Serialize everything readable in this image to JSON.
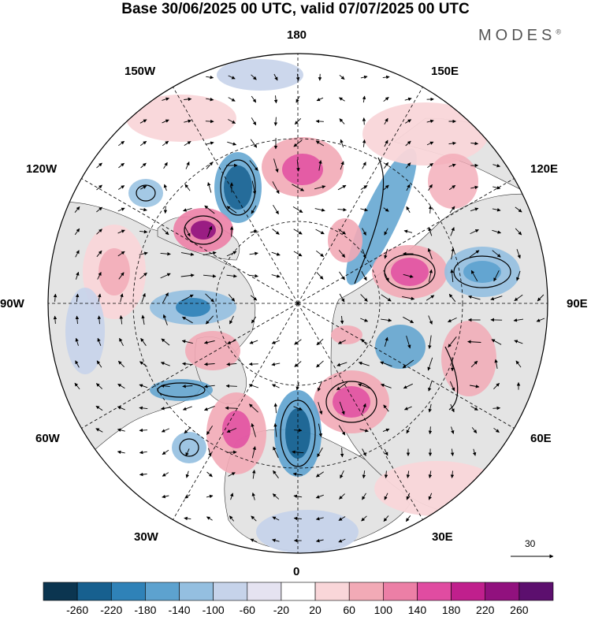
{
  "title": "Base 30/06/2025 00 UTC, valid 07/07/2025 00 UTC",
  "brand": "MODES",
  "brand_mark": "®",
  "longitude_labels": {
    "n180": "180",
    "n150e": "150E",
    "n120e": "120E",
    "n90e": "90E",
    "n60e": "60E",
    "n30e": "30E",
    "n0": "0",
    "n30w": "30W",
    "n60w": "60W",
    "n90w": "90W",
    "n120w": "120W",
    "n150w": "150W"
  },
  "reference_vector_label": "30",
  "colorbar": {
    "ticks": [
      "-260",
      "-220",
      "-180",
      "-140",
      "-100",
      "-60",
      "-20",
      "20",
      "60",
      "100",
      "140",
      "180",
      "220",
      "260"
    ],
    "colors": [
      "#0b3550",
      "#17608f",
      "#2f82b8",
      "#5da2cf",
      "#94bfe0",
      "#c6d3ea",
      "#e5e3f1",
      "#ffffff",
      "#f9d6d9",
      "#f2aab6",
      "#ec7fa6",
      "#e04ca1",
      "#c01f8d",
      "#91117e",
      "#5c0f6e"
    ]
  },
  "colors": {
    "land": "#e4e4e4",
    "ocean": "#ffffff",
    "grid": "#000000"
  }
}
